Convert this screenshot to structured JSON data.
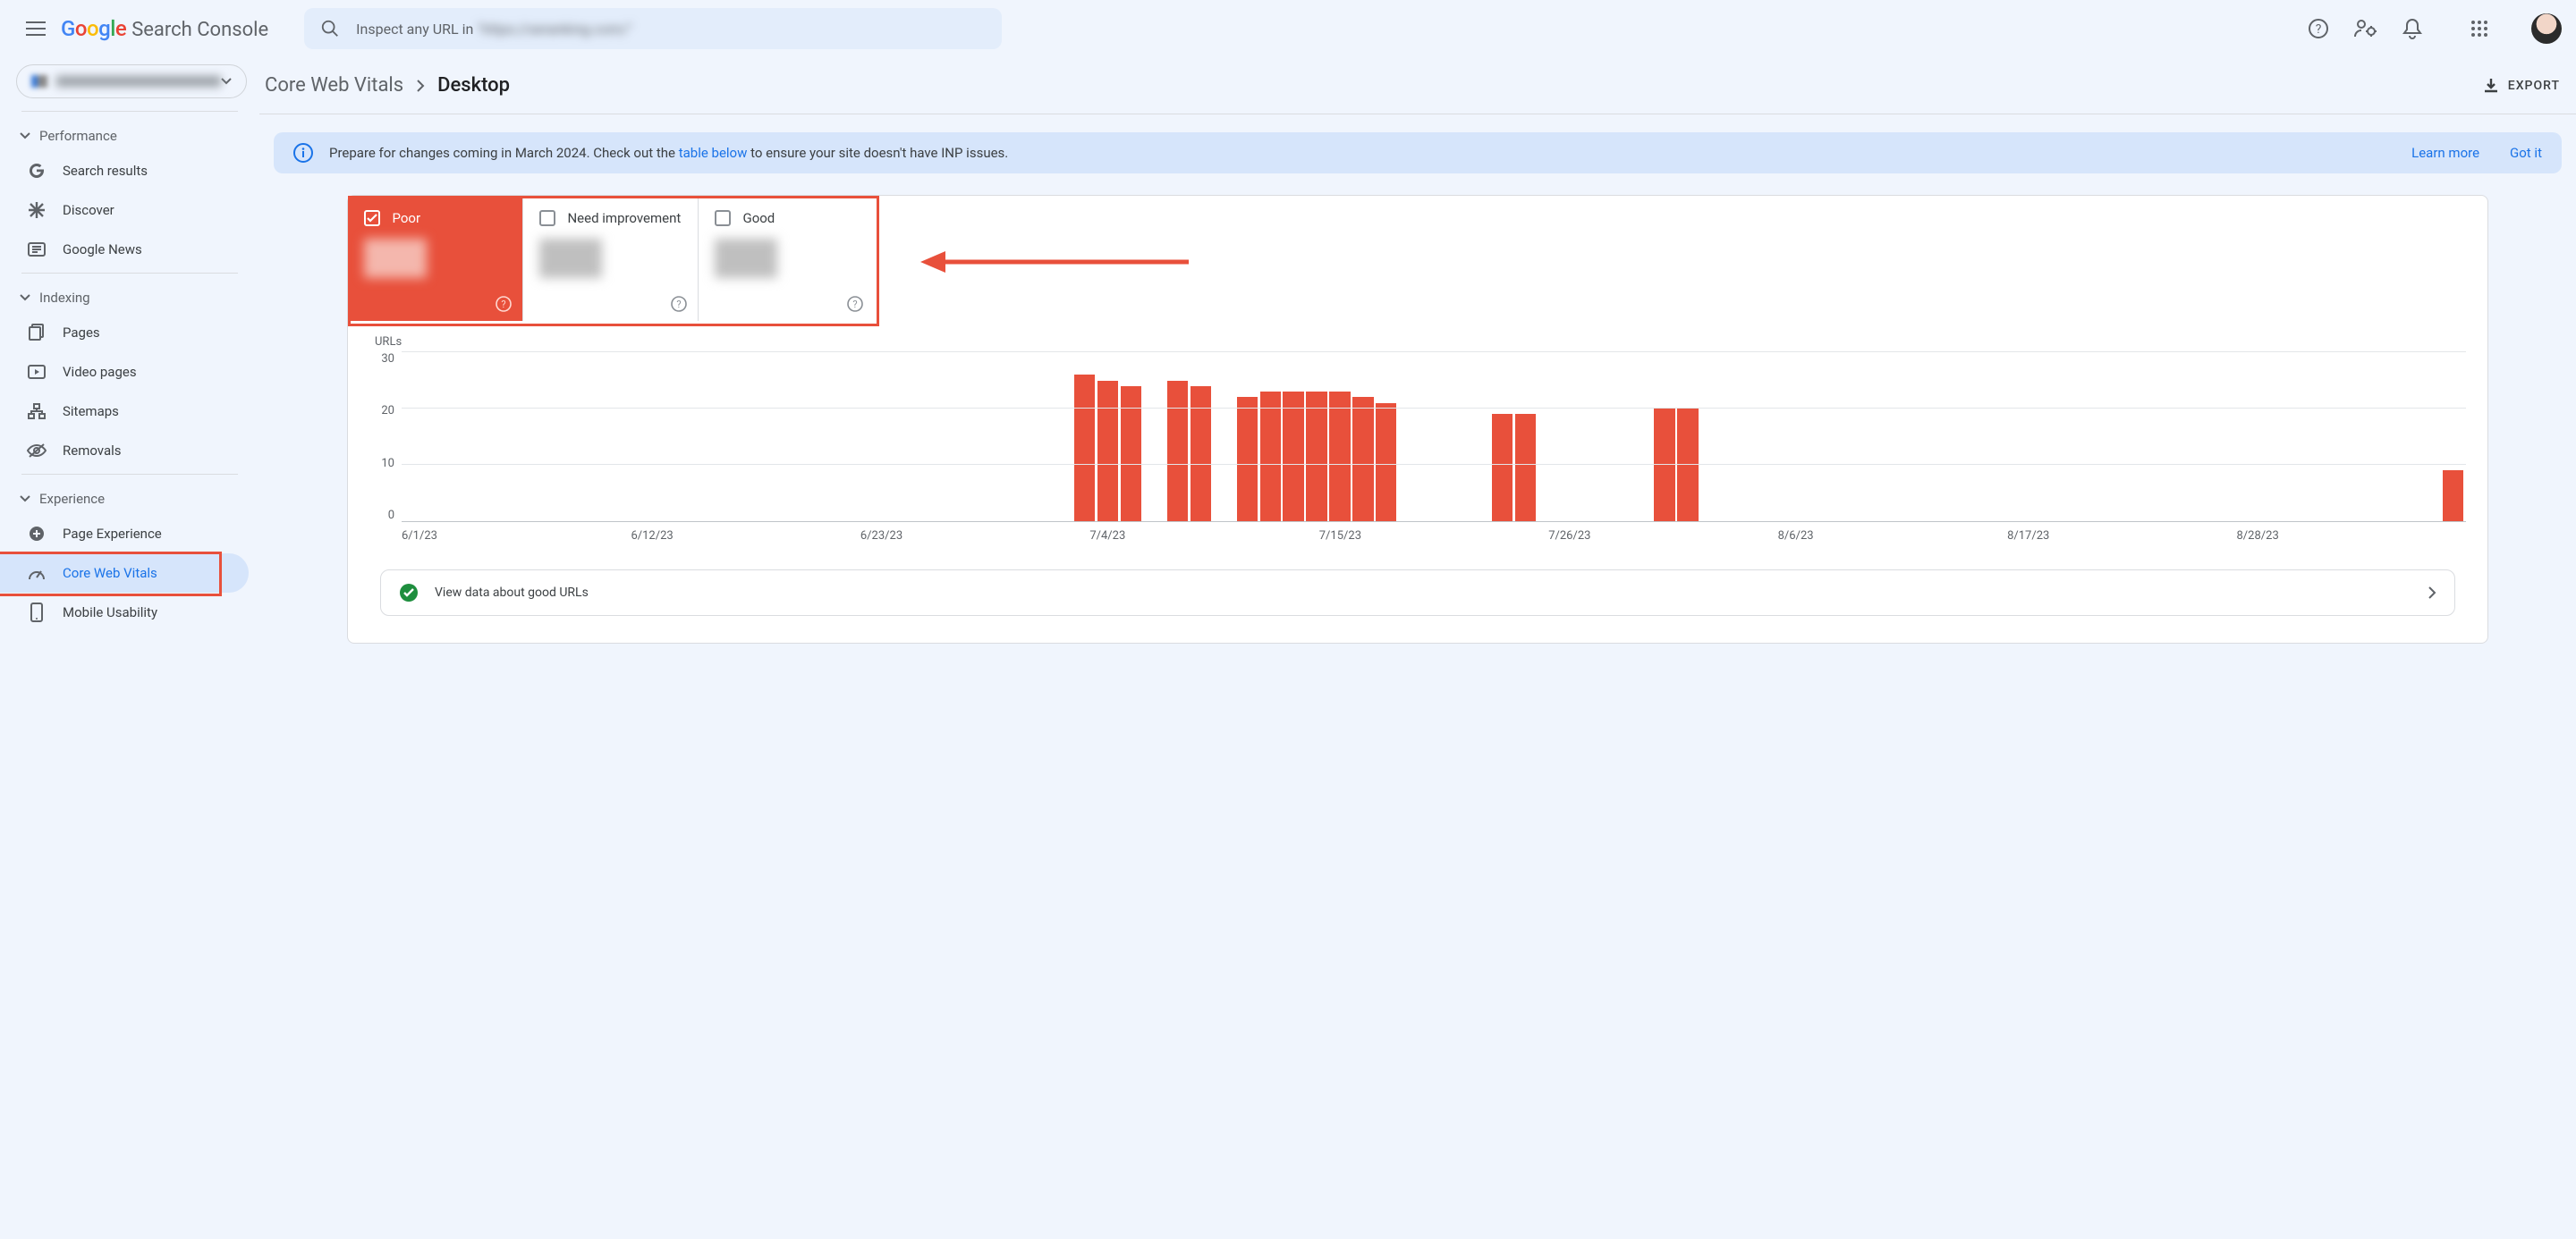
{
  "header": {
    "product_name": "Search Console",
    "search_prefix": "Inspect any URL in ",
    "search_domain_blur": "\"https://seranking.com/\""
  },
  "property": {
    "domain_blur": "example-blurred-domain"
  },
  "sidebar": {
    "sections": [
      {
        "title": "Performance",
        "items": [
          {
            "label": "Search results"
          },
          {
            "label": "Discover"
          },
          {
            "label": "Google News"
          }
        ]
      },
      {
        "title": "Indexing",
        "items": [
          {
            "label": "Pages"
          },
          {
            "label": "Video pages"
          },
          {
            "label": "Sitemaps"
          },
          {
            "label": "Removals"
          }
        ]
      },
      {
        "title": "Experience",
        "items": [
          {
            "label": "Page Experience"
          },
          {
            "label": "Core Web Vitals",
            "active": true
          },
          {
            "label": "Mobile Usability"
          }
        ]
      }
    ]
  },
  "breadcrumb": {
    "parent": "Core Web Vitals",
    "current": "Desktop"
  },
  "export_label": "EXPORT",
  "banner": {
    "text_before": "Prepare for changes coming in March 2024. Check out the ",
    "link_text": "table below",
    "text_after": " to ensure your site doesn't have INP issues.",
    "learn_more": "Learn more",
    "got_it": "Got it"
  },
  "tabs": [
    {
      "label": "Poor",
      "checked": true,
      "variant": "poor"
    },
    {
      "label": "Need improvement",
      "checked": false,
      "variant": "needimp"
    },
    {
      "label": "Good",
      "checked": false,
      "variant": "good"
    }
  ],
  "chart": {
    "type": "bar",
    "y_label": "URLs",
    "ylim": [
      0,
      30
    ],
    "y_ticks": [
      30,
      20,
      10,
      0
    ],
    "x_ticks": [
      "6/1/23",
      "6/12/23",
      "6/23/23",
      "7/4/23",
      "7/15/23",
      "7/26/23",
      "8/6/23",
      "8/17/23",
      "8/28/23"
    ],
    "x_range_days": 89,
    "bar_color": "#e8503b",
    "grid_color": "#e3e6e9",
    "background_color": "#ffffff",
    "bar_width_pct": 0.9,
    "bars": [
      {
        "day": 29,
        "value": 26
      },
      {
        "day": 30,
        "value": 25
      },
      {
        "day": 31,
        "value": 24
      },
      {
        "day": 33,
        "value": 25
      },
      {
        "day": 34,
        "value": 24
      },
      {
        "day": 36,
        "value": 22
      },
      {
        "day": 37,
        "value": 23
      },
      {
        "day": 38,
        "value": 23
      },
      {
        "day": 39,
        "value": 23
      },
      {
        "day": 40,
        "value": 23
      },
      {
        "day": 41,
        "value": 22
      },
      {
        "day": 42,
        "value": 21
      },
      {
        "day": 47,
        "value": 19
      },
      {
        "day": 48,
        "value": 19
      },
      {
        "day": 54,
        "value": 20
      },
      {
        "day": 55,
        "value": 20
      },
      {
        "day": 88,
        "value": 9
      }
    ]
  },
  "view_row": {
    "label": "View data about good URLs"
  }
}
